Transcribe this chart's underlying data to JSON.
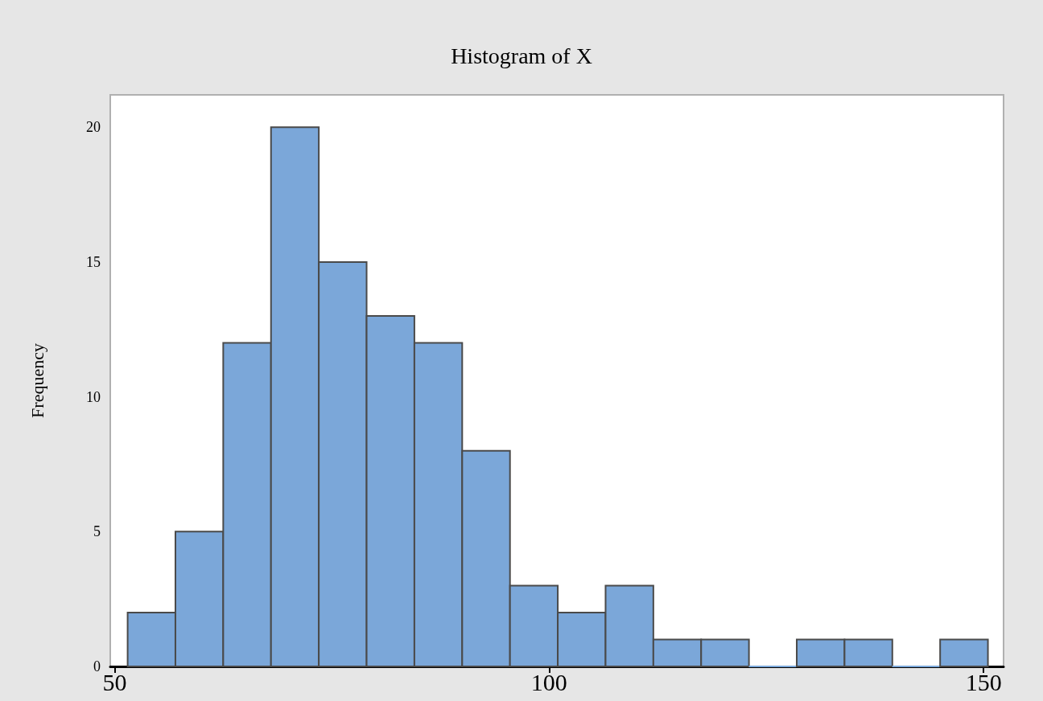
{
  "chart_data": {
    "type": "histogram",
    "title": "Histogram of X",
    "ylabel": "Frequency",
    "bins": [
      51.5,
      57,
      62.5,
      68,
      73.5,
      79,
      84.5,
      90,
      95.5,
      101,
      106.5,
      112,
      117.5,
      123,
      128.5,
      134,
      139.5,
      145,
      150.5
    ],
    "values": [
      2,
      5,
      12,
      20,
      15,
      13,
      12,
      8,
      3,
      2,
      3,
      1,
      1,
      0,
      1,
      1,
      0,
      1
    ],
    "color": "#7ba7d9",
    "xlim": [
      49.5,
      152.3
    ],
    "xticks": [
      50,
      100,
      150
    ],
    "ylim": [
      0,
      21.2
    ],
    "yticks": [
      0,
      5,
      10,
      15,
      20
    ],
    "grid": false
  }
}
